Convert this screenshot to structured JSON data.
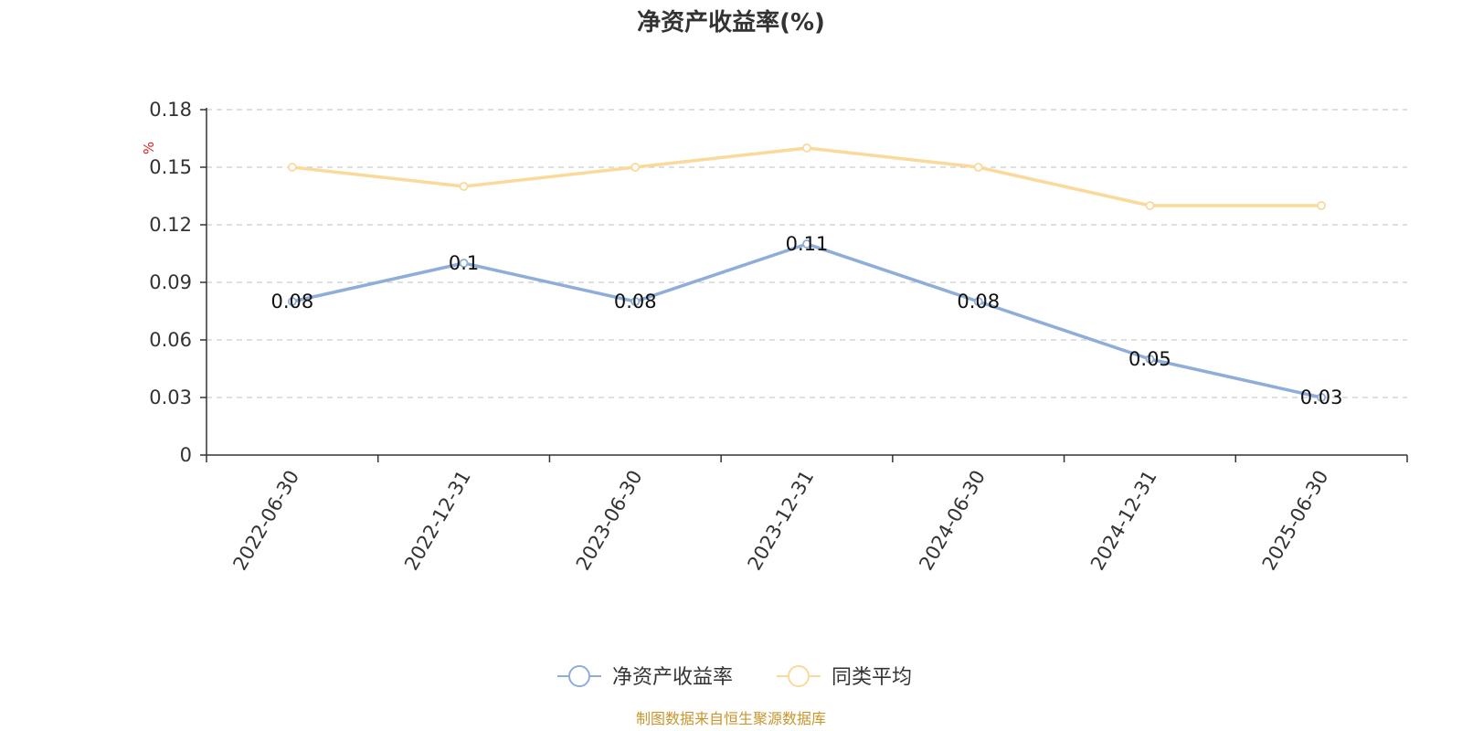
{
  "chart_data": {
    "type": "line",
    "title": "净资产收益率(%)",
    "unit_label": "%",
    "categories": [
      "2022-06-30",
      "2022-12-31",
      "2023-06-30",
      "2023-12-31",
      "2024-06-30",
      "2024-12-31",
      "2025-06-30"
    ],
    "series": [
      {
        "name": "净资产收益率",
        "color": "#8eaed9",
        "values": [
          0.08,
          0.1,
          0.08,
          0.11,
          0.08,
          0.05,
          0.03
        ],
        "show_labels": true
      },
      {
        "name": "同类平均",
        "color": "#fad99a",
        "values": [
          0.15,
          0.14,
          0.15,
          0.16,
          0.15,
          0.13,
          0.13
        ],
        "show_labels": false
      }
    ],
    "ylim": [
      0,
      0.18
    ],
    "yticks": [
      "0",
      "0.03",
      "0.06",
      "0.09",
      "0.12",
      "0.15",
      "0.18"
    ],
    "grid": true,
    "legend_position": "bottom-center"
  },
  "source_text": "制图数据来自恒生聚源数据库"
}
